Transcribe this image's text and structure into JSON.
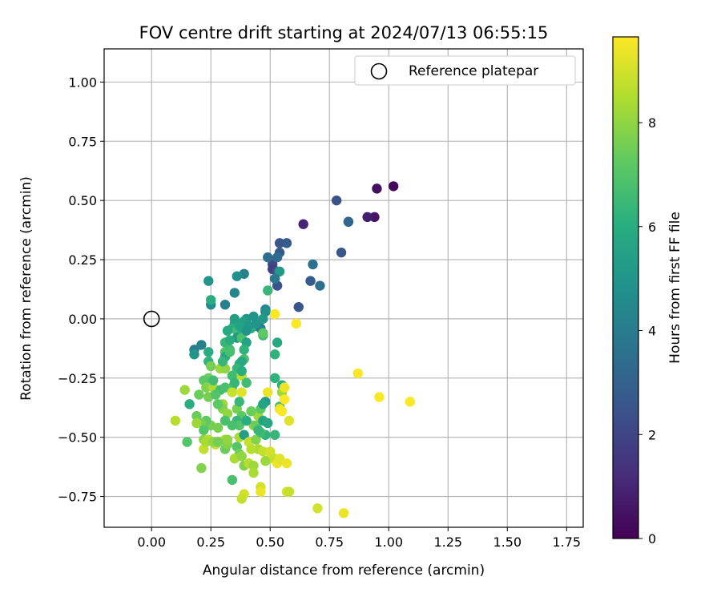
{
  "chart_data": {
    "type": "scatter",
    "title": "FOV centre drift starting at 2024/07/13 06:55:15",
    "xlabel": "Angular distance from reference (arcmin)",
    "ylabel": "Rotation from reference (arcmin)",
    "xlim": [
      -0.2,
      1.82
    ],
    "ylim": [
      -0.88,
      1.14
    ],
    "xticks": [
      "0.00",
      "0.25",
      "0.50",
      "0.75",
      "1.00",
      "1.25",
      "1.50",
      "1.75"
    ],
    "xtick_values": [
      0,
      0.25,
      0.5,
      0.75,
      1.0,
      1.25,
      1.5,
      1.75
    ],
    "yticks": [
      "−0.75",
      "−0.50",
      "−0.25",
      "0.00",
      "0.25",
      "0.50",
      "0.75",
      "1.00"
    ],
    "ytick_values": [
      -0.75,
      -0.5,
      -0.25,
      0,
      0.25,
      0.5,
      0.75,
      1.0
    ],
    "grid": true,
    "legend": {
      "position": "top-right",
      "entries": [
        "Reference platepar"
      ]
    },
    "reference_point": {
      "name": "Reference platepar",
      "x": 0.0,
      "y": 0.0
    },
    "colorbar": {
      "label": "Hours from first FF file",
      "colormap": "viridis",
      "range": [
        0,
        9.65
      ],
      "ticks": [
        "0",
        "2",
        "4",
        "6",
        "8"
      ],
      "tick_values": [
        0,
        2,
        4,
        6,
        8
      ]
    },
    "points": [
      [
        1.02,
        0.56,
        0.2
      ],
      [
        0.95,
        0.55,
        0.4
      ],
      [
        0.94,
        0.43,
        0.6
      ],
      [
        0.91,
        0.43,
        0.8
      ],
      [
        0.64,
        0.4,
        1.0
      ],
      [
        0.83,
        0.41,
        3.0
      ],
      [
        0.83,
        0.41,
        3.2
      ],
      [
        0.78,
        0.5,
        2.4
      ],
      [
        0.8,
        0.28,
        2.6
      ],
      [
        0.57,
        0.32,
        2.8
      ],
      [
        0.54,
        0.32,
        2.6
      ],
      [
        0.54,
        0.28,
        2.8
      ],
      [
        0.51,
        0.23,
        2.2
      ],
      [
        0.51,
        0.21,
        1.8
      ],
      [
        0.53,
        0.2,
        2.6
      ],
      [
        0.53,
        0.14,
        2.5
      ],
      [
        0.68,
        0.23,
        3.6
      ],
      [
        0.67,
        0.16,
        2.8
      ],
      [
        0.71,
        0.14,
        3.6
      ],
      [
        0.62,
        0.05,
        2.6
      ],
      [
        0.53,
        0.26,
        3.4
      ],
      [
        0.49,
        0.26,
        3.4
      ],
      [
        0.39,
        0.19,
        4.2
      ],
      [
        0.36,
        0.18,
        4.8
      ],
      [
        0.24,
        0.16,
        5.0
      ],
      [
        0.54,
        0.2,
        5.2
      ],
      [
        0.52,
        0.17,
        3.8
      ],
      [
        0.35,
        0.11,
        4.4
      ],
      [
        0.31,
        0.06,
        4.2
      ],
      [
        0.25,
        0.06,
        4.6
      ],
      [
        0.25,
        0.08,
        6.0
      ],
      [
        0.48,
        0.04,
        4.4
      ],
      [
        0.48,
        0.03,
        4.8
      ],
      [
        0.43,
        0.01,
        5.0
      ],
      [
        0.44,
        -0.03,
        4.2
      ],
      [
        0.47,
        0.0,
        5.2
      ],
      [
        0.46,
        -0.04,
        4.0
      ],
      [
        0.4,
        0.0,
        5.0
      ],
      [
        0.39,
        -0.01,
        5.4
      ],
      [
        0.35,
        -0.02,
        5.6
      ],
      [
        0.34,
        -0.04,
        6.0
      ],
      [
        0.36,
        -0.05,
        6.6
      ],
      [
        0.38,
        -0.06,
        6.0
      ],
      [
        0.42,
        -0.04,
        6.2
      ],
      [
        0.36,
        -0.08,
        5.2
      ],
      [
        0.38,
        -0.08,
        6.8
      ],
      [
        0.31,
        -0.1,
        6.4
      ],
      [
        0.4,
        -0.1,
        5.6
      ],
      [
        0.47,
        -0.07,
        6.6
      ],
      [
        0.47,
        -0.06,
        7.2
      ],
      [
        0.53,
        -0.1,
        5.8
      ],
      [
        0.52,
        -0.15,
        6.2
      ],
      [
        0.21,
        -0.11,
        4.2
      ],
      [
        0.18,
        -0.13,
        4.0
      ],
      [
        0.18,
        -0.15,
        5.0
      ],
      [
        0.24,
        -0.14,
        6.0
      ],
      [
        0.24,
        -0.18,
        6.2
      ],
      [
        0.31,
        -0.14,
        7.0
      ],
      [
        0.33,
        -0.13,
        6.6
      ],
      [
        0.37,
        -0.19,
        6.2
      ],
      [
        0.39,
        -0.17,
        6.8
      ],
      [
        0.38,
        -0.18,
        5.8
      ],
      [
        0.36,
        -0.21,
        6.4
      ],
      [
        0.34,
        -0.24,
        6.6
      ],
      [
        0.38,
        -0.24,
        8.6
      ],
      [
        0.29,
        -0.21,
        8.2
      ],
      [
        0.31,
        -0.21,
        8.0
      ],
      [
        0.25,
        -0.2,
        7.6
      ],
      [
        0.24,
        -0.25,
        7.4
      ],
      [
        0.22,
        -0.26,
        7.2
      ],
      [
        0.23,
        -0.29,
        7.8
      ],
      [
        0.26,
        -0.29,
        8.4
      ],
      [
        0.24,
        -0.33,
        7.6
      ],
      [
        0.2,
        -0.32,
        7.4
      ],
      [
        0.14,
        -0.3,
        8.2
      ],
      [
        0.16,
        -0.36,
        6.0
      ],
      [
        0.29,
        -0.3,
        6.6
      ],
      [
        0.31,
        -0.29,
        6.8
      ],
      [
        0.34,
        -0.29,
        7.0
      ],
      [
        0.34,
        -0.31,
        8.8
      ],
      [
        0.38,
        -0.31,
        9.2
      ],
      [
        0.3,
        -0.36,
        8.2
      ],
      [
        0.3,
        -0.38,
        7.8
      ],
      [
        0.32,
        -0.4,
        8.0
      ],
      [
        0.36,
        -0.38,
        7.6
      ],
      [
        0.38,
        -0.41,
        7.2
      ],
      [
        0.36,
        -0.43,
        6.4
      ],
      [
        0.37,
        -0.45,
        7.0
      ],
      [
        0.34,
        -0.45,
        6.8
      ],
      [
        0.31,
        -0.43,
        6.8
      ],
      [
        0.28,
        -0.46,
        7.6
      ],
      [
        0.25,
        -0.45,
        7.6
      ],
      [
        0.23,
        -0.43,
        7.2
      ],
      [
        0.21,
        -0.44,
        7.6
      ],
      [
        0.19,
        -0.41,
        7.4
      ],
      [
        0.19,
        -0.44,
        8.2
      ],
      [
        0.22,
        -0.47,
        7.0
      ],
      [
        0.22,
        -0.51,
        8.0
      ],
      [
        0.24,
        -0.51,
        8.6
      ],
      [
        0.27,
        -0.53,
        8.8
      ],
      [
        0.31,
        -0.51,
        8.4
      ],
      [
        0.31,
        -0.55,
        7.4
      ],
      [
        0.32,
        -0.53,
        7.8
      ],
      [
        0.37,
        -0.5,
        8.4
      ],
      [
        0.39,
        -0.49,
        5.4
      ],
      [
        0.41,
        -0.52,
        8.8
      ],
      [
        0.44,
        -0.51,
        7.8
      ],
      [
        0.43,
        -0.45,
        8.0
      ],
      [
        0.44,
        -0.45,
        7.4
      ],
      [
        0.45,
        -0.41,
        8.2
      ],
      [
        0.46,
        -0.38,
        7.2
      ],
      [
        0.48,
        -0.35,
        5.2
      ],
      [
        0.47,
        -0.36,
        5.6
      ],
      [
        0.47,
        -0.43,
        5.6
      ],
      [
        0.49,
        -0.44,
        5.8
      ],
      [
        0.48,
        -0.49,
        6.2
      ],
      [
        0.46,
        -0.48,
        6.6
      ],
      [
        0.52,
        -0.49,
        6.4
      ],
      [
        0.54,
        -0.37,
        6.6
      ],
      [
        0.54,
        -0.38,
        9.4
      ],
      [
        0.52,
        -0.25,
        6.2
      ],
      [
        0.55,
        -0.28,
        6.0
      ],
      [
        0.55,
        -0.31,
        8.2
      ],
      [
        0.56,
        -0.29,
        9.4
      ],
      [
        0.56,
        -0.34,
        9.6
      ],
      [
        0.55,
        -0.39,
        9.6
      ],
      [
        0.58,
        -0.43,
        9.2
      ],
      [
        0.49,
        -0.31,
        9.4
      ],
      [
        0.1,
        -0.43,
        8.6
      ],
      [
        0.15,
        -0.52,
        7.0
      ],
      [
        0.22,
        -0.55,
        8.8
      ],
      [
        0.23,
        -0.52,
        8.4
      ],
      [
        0.26,
        -0.52,
        8.0
      ],
      [
        0.28,
        -0.52,
        7.6
      ],
      [
        0.32,
        -0.51,
        8.0
      ],
      [
        0.36,
        -0.54,
        7.0
      ],
      [
        0.37,
        -0.57,
        7.6
      ],
      [
        0.35,
        -0.59,
        8.4
      ],
      [
        0.38,
        -0.58,
        8.0
      ],
      [
        0.39,
        -0.62,
        7.8
      ],
      [
        0.41,
        -0.61,
        8.6
      ],
      [
        0.43,
        -0.62,
        8.2
      ],
      [
        0.45,
        -0.55,
        8.4
      ],
      [
        0.42,
        -0.55,
        8.6
      ],
      [
        0.47,
        -0.56,
        8.8
      ],
      [
        0.5,
        -0.56,
        9.0
      ],
      [
        0.5,
        -0.59,
        9.0
      ],
      [
        0.48,
        -0.6,
        8.2
      ],
      [
        0.52,
        -0.59,
        8.8
      ],
      [
        0.53,
        -0.61,
        9.4
      ],
      [
        0.54,
        -0.59,
        9.2
      ],
      [
        0.57,
        -0.61,
        9.4
      ],
      [
        0.21,
        -0.63,
        7.8
      ],
      [
        0.34,
        -0.68,
        6.8
      ],
      [
        0.43,
        -0.65,
        8.4
      ],
      [
        0.39,
        -0.74,
        9.0
      ],
      [
        0.38,
        -0.76,
        8.8
      ],
      [
        0.46,
        -0.71,
        9.0
      ],
      [
        0.46,
        -0.73,
        9.4
      ],
      [
        0.57,
        -0.73,
        9.0
      ],
      [
        0.58,
        -0.73,
        8.8
      ],
      [
        0.7,
        -0.8,
        9.0
      ],
      [
        0.81,
        -0.82,
        9.4
      ],
      [
        0.87,
        -0.23,
        9.6
      ],
      [
        0.96,
        -0.33,
        9.6
      ],
      [
        1.09,
        -0.35,
        9.6
      ],
      [
        0.52,
        0.02,
        9.6
      ],
      [
        0.61,
        -0.02,
        9.6
      ],
      [
        0.49,
        0.12,
        6.4
      ],
      [
        0.32,
        -0.05,
        5.8
      ],
      [
        0.35,
        0.0,
        5.4
      ],
      [
        0.37,
        -0.03,
        5.6
      ],
      [
        0.41,
        -0.03,
        5.2
      ],
      [
        0.4,
        -0.05,
        5.0
      ],
      [
        0.33,
        -0.09,
        6.0
      ],
      [
        0.31,
        -0.16,
        5.8
      ],
      [
        0.44,
        -0.02,
        5.0
      ],
      [
        0.39,
        -0.13,
        6.2
      ],
      [
        0.3,
        -0.18,
        6.4
      ],
      [
        0.26,
        -0.26,
        6.6
      ],
      [
        0.38,
        -0.22,
        6.0
      ],
      [
        0.4,
        -0.27,
        6.6
      ],
      [
        0.28,
        -0.36,
        7.2
      ],
      [
        0.4,
        -0.43,
        6.0
      ],
      [
        0.45,
        -0.47,
        6.4
      ],
      [
        0.33,
        -0.14,
        6.8
      ],
      [
        0.35,
        -0.27,
        6.4
      ],
      [
        0.27,
        -0.32,
        7.0
      ],
      [
        0.42,
        -0.39,
        7.4
      ],
      [
        0.37,
        -0.35,
        6.4
      ]
    ]
  }
}
